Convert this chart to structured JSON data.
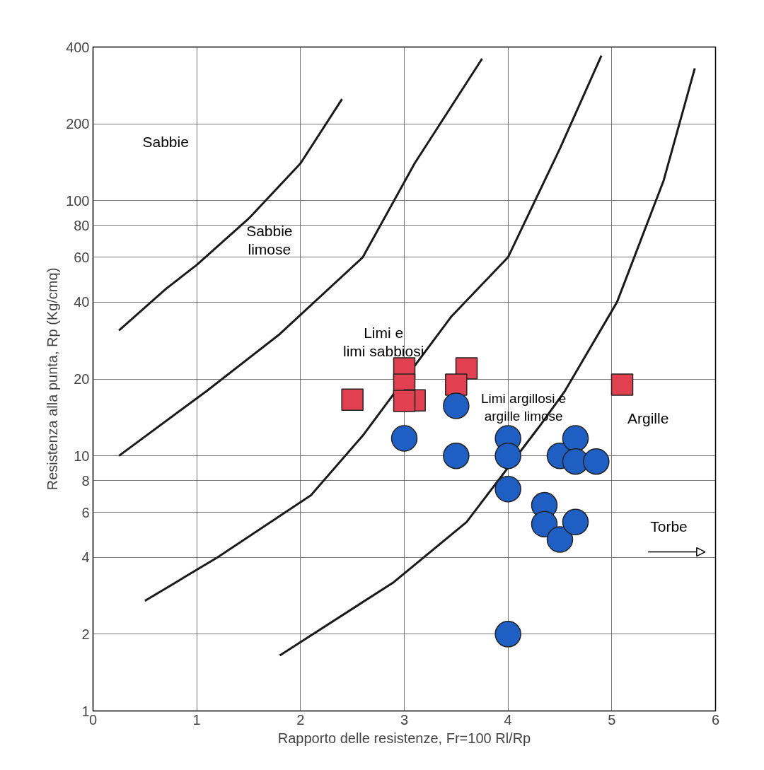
{
  "chart_data": {
    "type": "scatter",
    "xlabel": "Rapporto delle resistenze, Fr=100 Rl/Rp",
    "ylabel": "Resistenza alla punta, Rp (Kg/cmq)",
    "log": "y",
    "grid": true,
    "xlim": [
      0,
      6
    ],
    "ylim": [
      1,
      400
    ],
    "xticks": [
      0,
      1,
      2,
      3,
      4,
      5,
      6
    ],
    "yticks": [
      1,
      2,
      4,
      6,
      8,
      10,
      20,
      40,
      60,
      80,
      100,
      200,
      400
    ],
    "annotations": [
      "Sabbie",
      "Sabbie\nlimose",
      "Limi e\nlimi sabbiosi",
      "Limi argillosi e\nargille limose",
      "Argille",
      "Torbe"
    ],
    "series": [
      {
        "type": "line",
        "color": "#1a1a1a",
        "marker": "none",
        "x": [
          0.25,
          0.7,
          1.0,
          1.5,
          2.0,
          2.4
        ],
        "values": [
          31,
          45,
          56,
          85,
          140,
          250
        ]
      },
      {
        "type": "line",
        "color": "#1a1a1a",
        "marker": "none",
        "x": [
          0.25,
          1.1,
          1.8,
          2.6,
          3.1,
          3.75
        ],
        "values": [
          10,
          18,
          30,
          60,
          140,
          360
        ]
      },
      {
        "type": "line",
        "color": "#1a1a1a",
        "marker": "none",
        "x": [
          0.5,
          1.2,
          2.1,
          2.6,
          3.45,
          4.0,
          4.5,
          4.9
        ],
        "values": [
          2.7,
          4,
          7,
          12,
          35,
          60,
          160,
          370
        ]
      },
      {
        "type": "line",
        "color": "#1a1a1a",
        "marker": "none",
        "x": [
          1.8,
          2.9,
          3.6,
          4.3,
          4.55,
          5.05,
          5.5,
          5.8
        ],
        "values": [
          1.65,
          3.2,
          5.5,
          13,
          18,
          40,
          120,
          330
        ]
      },
      {
        "color": "#e0404f",
        "marker": "square",
        "x": [
          2.5,
          3.0,
          3.0,
          3.1,
          3.0,
          3.6,
          3.5,
          5.1
        ],
        "values": [
          16.6,
          22,
          19,
          16.5,
          16.4,
          22,
          19,
          19
        ]
      },
      {
        "color": "#1f5fc4",
        "marker": "circle",
        "x": [
          3.5,
          3.0,
          3.5,
          4.0,
          4.0,
          4.0,
          4.35,
          4.35,
          4.5,
          4.65,
          4.5,
          4.65,
          4.65,
          4.85,
          4.0
        ],
        "values": [
          15.7,
          11.7,
          10,
          11.7,
          10,
          7.4,
          6.4,
          5.4,
          4.7,
          5.5,
          10,
          11.7,
          9.5,
          9.5,
          2
        ]
      }
    ]
  }
}
